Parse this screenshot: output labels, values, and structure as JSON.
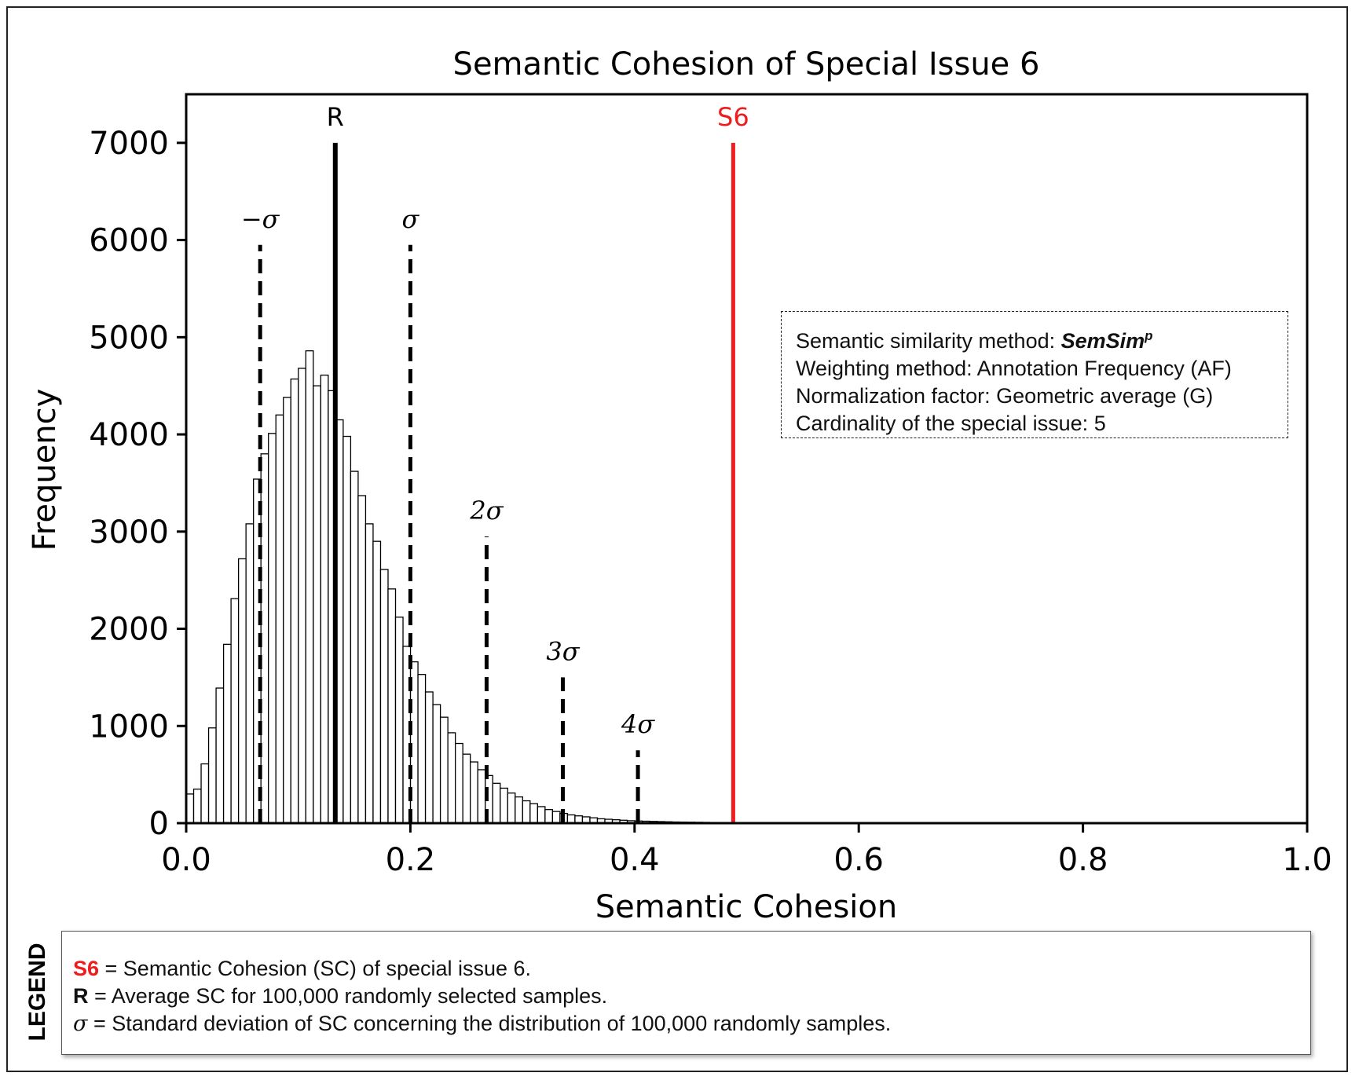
{
  "chart_data": {
    "type": "bar",
    "title": "Semantic Cohesion of Special Issue 6",
    "xlabel": "Semantic Cohesion",
    "ylabel": "Frequency",
    "xlim": [
      0.0,
      1.0
    ],
    "ylim": [
      0,
      7500
    ],
    "x_ticks": [
      "0.0",
      "0.2",
      "0.4",
      "0.6",
      "0.8",
      "1.0"
    ],
    "y_ticks": [
      "0",
      "1000",
      "2000",
      "3000",
      "4000",
      "5000",
      "6000",
      "7000"
    ],
    "bin_start": 0.0,
    "bin_width": 0.00667,
    "histogram_values": [
      300,
      350,
      610,
      980,
      1390,
      1840,
      2310,
      2720,
      3080,
      3540,
      3800,
      4010,
      4200,
      4380,
      4570,
      4680,
      4860,
      4500,
      4610,
      4450,
      4150,
      3980,
      3620,
      3370,
      3080,
      2900,
      2610,
      2410,
      2120,
      1820,
      1660,
      1530,
      1350,
      1220,
      1090,
      930,
      820,
      710,
      630,
      550,
      490,
      410,
      360,
      310,
      270,
      230,
      200,
      170,
      140,
      120,
      100,
      85,
      75,
      65,
      55,
      45,
      40,
      35,
      30,
      25,
      22,
      20,
      18,
      16,
      14,
      12,
      11,
      10,
      9,
      8,
      7,
      6,
      5,
      5,
      4,
      3,
      3,
      2,
      2,
      2,
      1,
      1,
      1,
      1,
      1
    ],
    "reference_lines": [
      {
        "id": "R",
        "label": "R",
        "x": 0.133,
        "height": 7000,
        "style": "solid",
        "color": "#000000"
      },
      {
        "id": "S6",
        "label": "S6",
        "x": 0.488,
        "height": 7000,
        "style": "solid",
        "color": "#ee1c1c"
      },
      {
        "id": "minus-sigma",
        "label": "−σ",
        "x": 0.066,
        "height": 5950,
        "style": "dashed",
        "color": "#000000"
      },
      {
        "id": "sigma",
        "label": "σ",
        "x": 0.2,
        "height": 5950,
        "style": "dashed",
        "color": "#000000"
      },
      {
        "id": "2sigma",
        "label": "2σ",
        "x": 0.268,
        "height": 2950,
        "style": "dashed",
        "color": "#000000"
      },
      {
        "id": "3sigma",
        "label": "3σ",
        "x": 0.336,
        "height": 1500,
        "style": "dashed",
        "color": "#000000"
      },
      {
        "id": "4sigma",
        "label": "4σ",
        "x": 0.403,
        "height": 750,
        "style": "dashed",
        "color": "#000000"
      }
    ]
  },
  "info_box": {
    "method_prefix": "Semantic similarity method: ",
    "method_name": "SemSim",
    "method_sup": "p",
    "weighting": "Weighting method: Annotation Frequency (AF)",
    "normalization": "Normalization factor: Geometric average (G)",
    "cardinality": "Cardinality of the special issue: 5"
  },
  "legend": {
    "title": "LEGEND",
    "s6_key": "S6",
    "s6_text": " = Semantic Cohesion (SC) of special issue 6.",
    "r_key": "R",
    "r_text": " = Average SC for 100,000 randomly selected samples.",
    "sigma_key": "σ",
    "sigma_text": " = Standard deviation of SC concerning the distribution of 100,000 randomly samples."
  },
  "colors": {
    "s6": "#ee1c1c",
    "axis": "#000000",
    "bar_edge": "#000000",
    "bar_fill": "#ffffff"
  }
}
